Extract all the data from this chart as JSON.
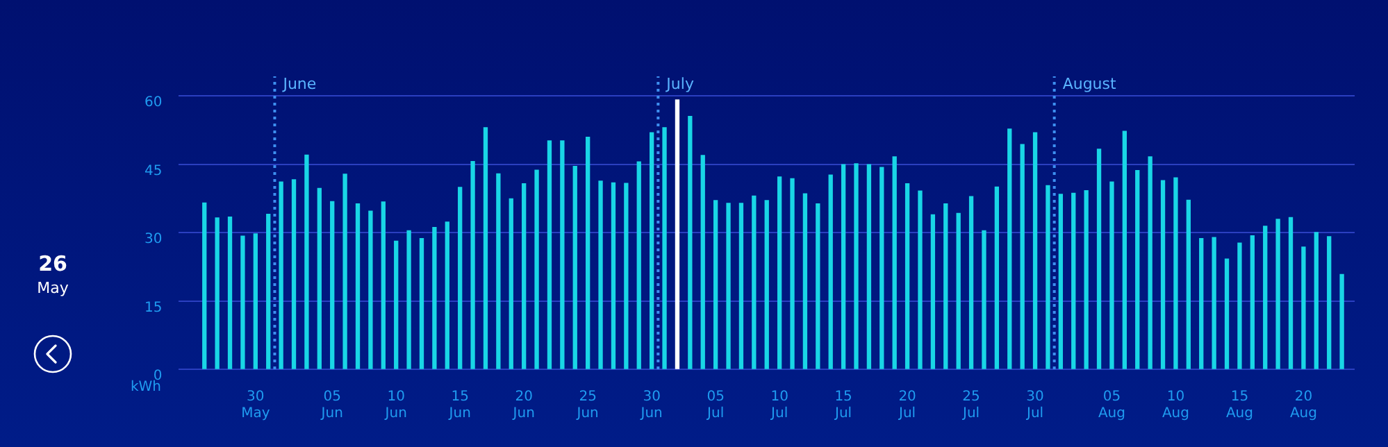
{
  "chart_data": {
    "type": "bar",
    "ylabel": "kWh",
    "x": [
      "--05-26",
      "--05-27",
      "--05-28",
      "--05-29",
      "--05-30",
      "--05-31",
      "--06-01",
      "--06-02",
      "--06-03",
      "--06-04",
      "--06-05",
      "--06-06",
      "--06-07",
      "--06-08",
      "--06-09",
      "--06-10",
      "--06-11",
      "--06-12",
      "--06-13",
      "--06-14",
      "--06-15",
      "--06-16",
      "--06-17",
      "--06-18",
      "--06-19",
      "--06-20",
      "--06-21",
      "--06-22",
      "--06-23",
      "--06-24",
      "--06-25",
      "--06-26",
      "--06-27",
      "--06-28",
      "--06-29",
      "--06-30",
      "--07-01",
      "--07-02",
      "--07-03",
      "--07-04",
      "--07-05",
      "--07-06",
      "--07-07",
      "--07-08",
      "--07-09",
      "--07-10",
      "--07-11",
      "--07-12",
      "--07-13",
      "--07-14",
      "--07-15",
      "--07-16",
      "--07-17",
      "--07-18",
      "--07-19",
      "--07-20",
      "--07-21",
      "--07-22",
      "--07-23",
      "--07-24",
      "--07-25",
      "--07-26",
      "--07-27",
      "--07-28",
      "--07-29",
      "--07-30",
      "--07-31",
      "--08-01",
      "--08-02",
      "--08-03",
      "--08-04",
      "--08-05",
      "--08-06",
      "--08-07",
      "--08-08",
      "--08-09",
      "--08-10",
      "--08-11",
      "--08-12",
      "--08-13",
      "--08-14",
      "--08-15",
      "--08-16",
      "--08-17",
      "--08-18",
      "--08-19",
      "--08-20",
      "--08-21",
      "--08-22",
      "--08-23"
    ],
    "values": [
      36.5,
      33.2,
      33.4,
      29.2,
      29.7,
      34.0,
      41.1,
      41.6,
      47.0,
      39.7,
      36.8,
      42.8,
      36.3,
      34.7,
      36.7,
      28.1,
      30.4,
      28.7,
      31.1,
      32.3,
      39.9,
      45.6,
      53.0,
      42.9,
      37.4,
      40.7,
      43.7,
      50.1,
      50.1,
      44.5,
      50.9,
      41.3,
      40.9,
      40.8,
      45.5,
      51.9,
      53.0,
      59.1,
      55.5,
      46.9,
      37.0,
      36.4,
      36.4,
      38.0,
      37.0,
      42.2,
      41.8,
      38.5,
      36.3,
      42.6,
      44.9,
      45.1,
      44.9,
      44.3,
      46.6,
      40.7,
      39.1,
      33.9,
      36.3,
      34.2,
      37.9,
      30.4,
      40.0,
      52.7,
      49.3,
      51.9,
      40.3,
      38.4,
      38.6,
      39.2,
      48.3,
      41.1,
      52.2,
      43.6,
      46.6,
      41.4,
      42.0,
      37.1,
      28.7,
      28.9,
      24.2,
      27.7,
      29.3,
      31.4,
      32.9,
      33.3,
      26.8,
      30.0,
      29.1,
      20.8
    ],
    "colors": [
      "#19d6e6",
      "#19d6e6",
      "#19d6e6",
      "#19d6e6",
      "#19d6e6",
      "#19d6e6",
      "#19d6e6",
      "#19d6e6",
      "#19d6e6",
      "#19d6e6",
      "#19d6e6",
      "#19d6e6",
      "#19d6e6",
      "#19d6e6",
      "#19d6e6",
      "#19d6e6",
      "#19d6e6",
      "#19d6e6",
      "#19d6e6",
      "#19d6e6",
      "#19d6e6",
      "#19d6e6",
      "#19d6e6",
      "#19d6e6",
      "#19d6e6",
      "#19d6e6",
      "#19d6e6",
      "#19d6e6",
      "#19d6e6",
      "#19d6e6",
      "#19d6e6",
      "#19d6e6",
      "#19d6e6",
      "#19d6e6",
      "#19d6e6",
      "#19d6e6",
      "#19d6e6",
      "#ffffff",
      "#19d6e6",
      "#19d6e6",
      "#19d6e6",
      "#19d6e6",
      "#19d6e6",
      "#19d6e6",
      "#19d6e6",
      "#19d6e6",
      "#19d6e6",
      "#19d6e6",
      "#19d6e6",
      "#19d6e6",
      "#19d6e6",
      "#19d6e6",
      "#19d6e6",
      "#19d6e6",
      "#19d6e6",
      "#19d6e6",
      "#19d6e6",
      "#19d6e6",
      "#19d6e6",
      "#19d6e6",
      "#19d6e6",
      "#19d6e6",
      "#19d6e6",
      "#19d6e6",
      "#19d6e6",
      "#19d6e6",
      "#19d6e6",
      "#19d6e6",
      "#19d6e6",
      "#19d6e6",
      "#19d6e6",
      "#19d6e6",
      "#19d6e6",
      "#19d6e6",
      "#19d6e6",
      "#19d6e6",
      "#19d6e6",
      "#19d6e6",
      "#19d6e6",
      "#19d6e6",
      "#19d6e6",
      "#19d6e6",
      "#19d6e6",
      "#19d6e6",
      "#19d6e6",
      "#19d6e6",
      "#19d6e6",
      "#19d6e6",
      "#19d6e6",
      "#19d6e6"
    ],
    "xlim": [
      "--05-24",
      "--08-24"
    ],
    "xticks": [
      {
        "value": "--05-30",
        "label": "30 May"
      },
      {
        "value": "--06-05",
        "label": "05 Jun"
      },
      {
        "value": "--06-10",
        "label": "10 Jun"
      },
      {
        "value": "--06-15",
        "label": "15 Jun"
      },
      {
        "value": "--06-20",
        "label": "20 Jun"
      },
      {
        "value": "--06-25",
        "label": "25 Jun"
      },
      {
        "value": "--06-30",
        "label": "30 Jun"
      },
      {
        "value": "--07-05",
        "label": "05 Jul"
      },
      {
        "value": "--07-10",
        "label": "10 Jul"
      },
      {
        "value": "--07-15",
        "label": "15 Jul"
      },
      {
        "value": "--07-20",
        "label": "20 Jul"
      },
      {
        "value": "--07-25",
        "label": "25 Jul"
      },
      {
        "value": "--07-30",
        "label": "30 Jul"
      },
      {
        "value": "--08-05",
        "label": "05 Aug"
      },
      {
        "value": "--08-10",
        "label": "10 Aug"
      },
      {
        "value": "--08-15",
        "label": "15 Aug"
      },
      {
        "value": "--08-20",
        "label": "20 Aug"
      }
    ],
    "ylim": [
      0,
      60
    ],
    "yticks": [
      0,
      15,
      30,
      45,
      60
    ],
    "grid": "y",
    "ref_lines": [
      {
        "axis": "x",
        "value": "--05-31T12:00",
        "label": "June",
        "color": "#3d8ff0",
        "line_style": "dotted"
      },
      {
        "axis": "x",
        "value": "--06-30T12:00",
        "label": "July",
        "color": "#3d8ff0",
        "line_style": "dotted"
      },
      {
        "axis": "x",
        "value": "--07-31T12:00",
        "label": "August",
        "color": "#3d8ff0",
        "line_style": "dotted"
      }
    ],
    "annotations": [
      "26",
      "May"
    ]
  }
}
